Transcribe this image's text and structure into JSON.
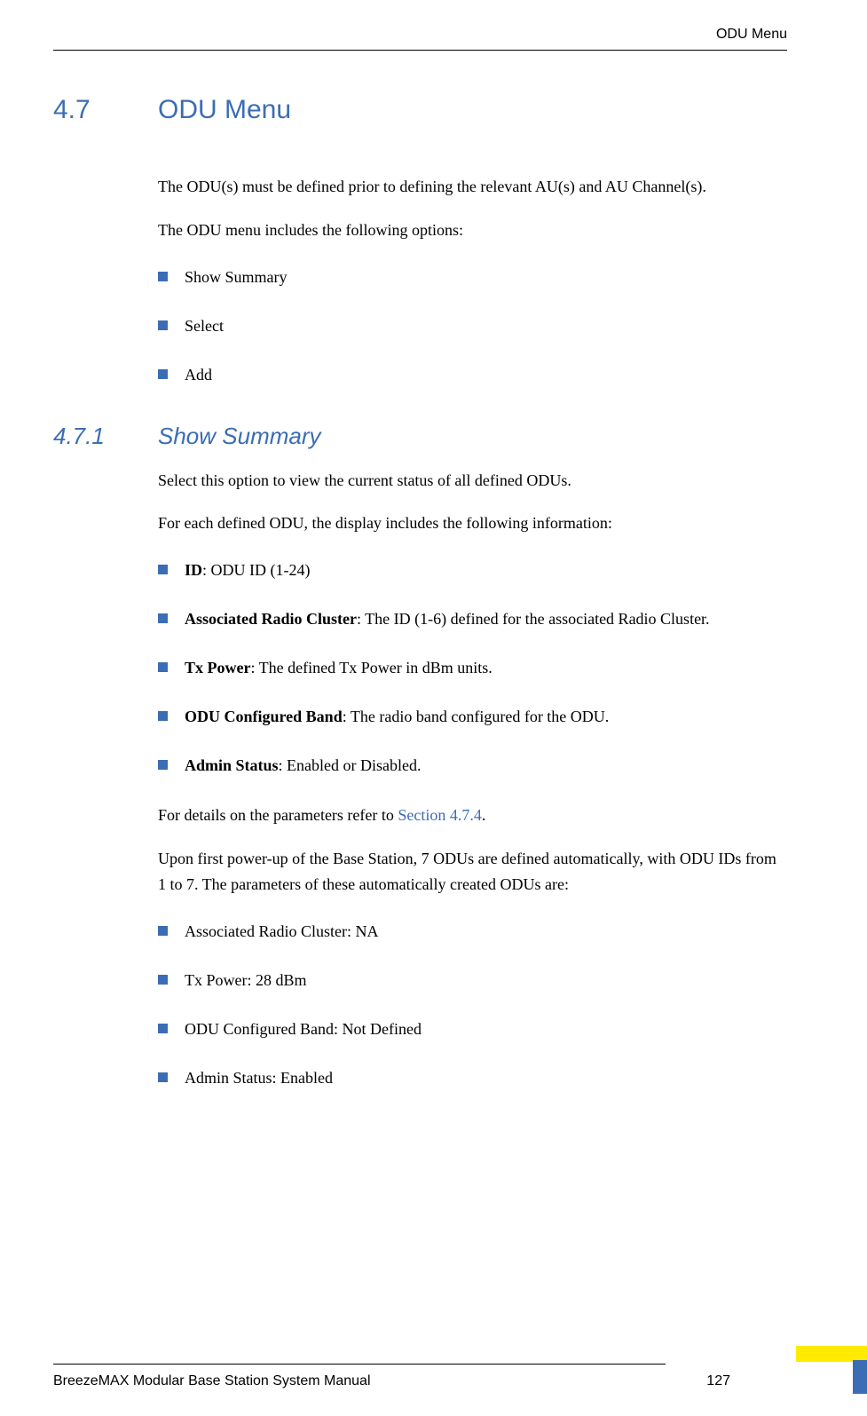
{
  "header": {
    "text": "ODU Menu"
  },
  "section": {
    "number": "4.7",
    "title": "ODU Menu"
  },
  "intro": {
    "para1": "The ODU(s) must be defined prior to defining the relevant AU(s) and AU Channel(s).",
    "para2": "The ODU menu includes the following options:"
  },
  "menu_options": [
    "Show Summary",
    "Select",
    "Add"
  ],
  "subsection": {
    "number": "4.7.1",
    "title": "Show Summary"
  },
  "summary": {
    "para1": "Select this option to view the current status of all defined ODUs.",
    "para2": "For each defined ODU, the display includes the following information:",
    "fields": [
      {
        "label": "ID",
        "desc": ": ODU ID (1-24)"
      },
      {
        "label": "Associated Radio Cluster",
        "desc": ": The ID (1-6) defined for the associated Radio Cluster."
      },
      {
        "label": "Tx Power",
        "desc": ": The defined Tx Power in dBm units."
      },
      {
        "label": "ODU Configured Band",
        "desc": ": The radio band configured for the ODU."
      },
      {
        "label": "Admin Status",
        "desc": ": Enabled or Disabled."
      }
    ],
    "para3_prefix": "For details on the parameters refer to ",
    "para3_link": "Section 4.7.4",
    "para3_suffix": ".",
    "para4": "Upon first power-up of the Base Station, 7 ODUs are defined automatically, with ODU IDs from 1 to 7. The parameters of these automatically created ODUs are:",
    "defaults": [
      "Associated Radio Cluster: NA",
      "Tx Power: 28 dBm",
      "ODU Configured Band: Not Defined",
      "Admin Status: Enabled"
    ]
  },
  "footer": {
    "text": "BreezeMAX Modular Base Station System Manual",
    "page": "127"
  },
  "colors": {
    "heading_color": "#3b6db4",
    "bullet_color": "#3b6db4",
    "yellow": "#ffeb00",
    "text": "#000000"
  }
}
